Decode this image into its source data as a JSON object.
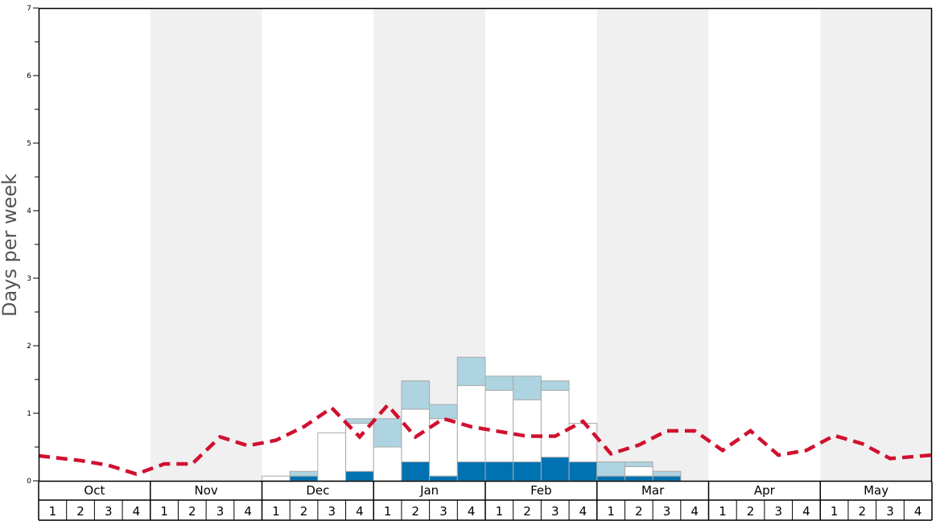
{
  "chart_data": {
    "type": "bar",
    "ylabel": "Days per week",
    "ylim": [
      0,
      7
    ],
    "y_ticks": [
      "0",
      "1",
      "2",
      "3",
      "4",
      "5",
      "6",
      "7"
    ],
    "months": [
      "Oct",
      "Nov",
      "Dec",
      "Jan",
      "Feb",
      "Mar",
      "Apr",
      "May"
    ],
    "week_labels": [
      "1",
      "2",
      "3",
      "4"
    ],
    "grid": false,
    "stacked_series": [
      {
        "color": "#0072b2",
        "values": [
          0,
          0,
          0,
          0,
          0,
          0,
          0,
          0,
          0,
          0.07,
          0,
          0.14,
          0,
          0.28,
          0.07,
          0.28,
          0.28,
          0.28,
          0.35,
          0.28,
          0.07,
          0.07,
          0.07,
          0,
          0,
          0,
          0,
          0,
          0,
          0,
          0,
          0
        ]
      },
      {
        "color": "#ffffff",
        "values": [
          0,
          0,
          0,
          0,
          0,
          0,
          0,
          0,
          0.07,
          0,
          0.71,
          0.71,
          0.5,
          0.78,
          0.85,
          1.13,
          1.06,
          0.92,
          0.99,
          0.57,
          0,
          0.14,
          0,
          0,
          0,
          0,
          0,
          0,
          0,
          0,
          0,
          0
        ]
      },
      {
        "color": "#add4e0",
        "values": [
          0,
          0,
          0,
          0,
          0,
          0,
          0,
          0,
          0,
          0.07,
          0,
          0.07,
          0.42,
          0.42,
          0.21,
          0.42,
          0.21,
          0.35,
          0.14,
          0,
          0.21,
          0.07,
          0.07,
          0,
          0,
          0,
          0,
          0,
          0,
          0,
          0,
          0
        ]
      }
    ],
    "average_line": {
      "color": "#d0102f",
      "style": "dashed",
      "values": [
        0.37,
        0.3,
        0.23,
        0.1,
        0.25,
        0.25,
        0.65,
        0.52,
        0.6,
        0.8,
        1.08,
        0.65,
        1.12,
        0.65,
        0.92,
        0.8,
        0.73,
        0.66,
        0.66,
        0.88,
        0.4,
        0.53,
        0.74,
        0.74,
        0.45,
        0.74,
        0.38,
        0.45,
        0.67,
        0.55,
        0.33,
        0.38
      ]
    },
    "shading": {
      "color": "#f0f0f0",
      "months": [
        "Nov",
        "Jan",
        "Mar",
        "May"
      ]
    }
  }
}
